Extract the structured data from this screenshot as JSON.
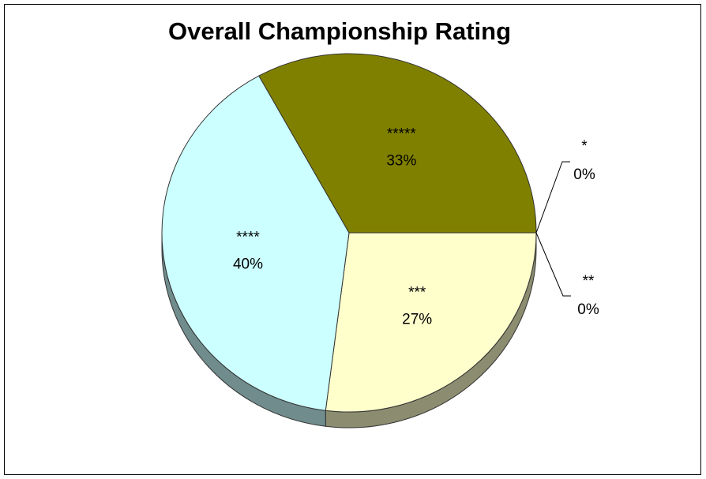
{
  "chart_data": {
    "type": "pie",
    "title": "Overall Championship Rating",
    "categories": [
      "*",
      "**",
      "***",
      "****",
      "*****"
    ],
    "values": [
      0,
      0,
      27,
      40,
      33
    ],
    "value_labels": [
      "0%",
      "0%",
      "27%",
      "40%",
      "33%"
    ],
    "colors": [
      "#9999ff",
      "#993366",
      "#ffffcc",
      "#ccffff",
      "#808000"
    ]
  }
}
